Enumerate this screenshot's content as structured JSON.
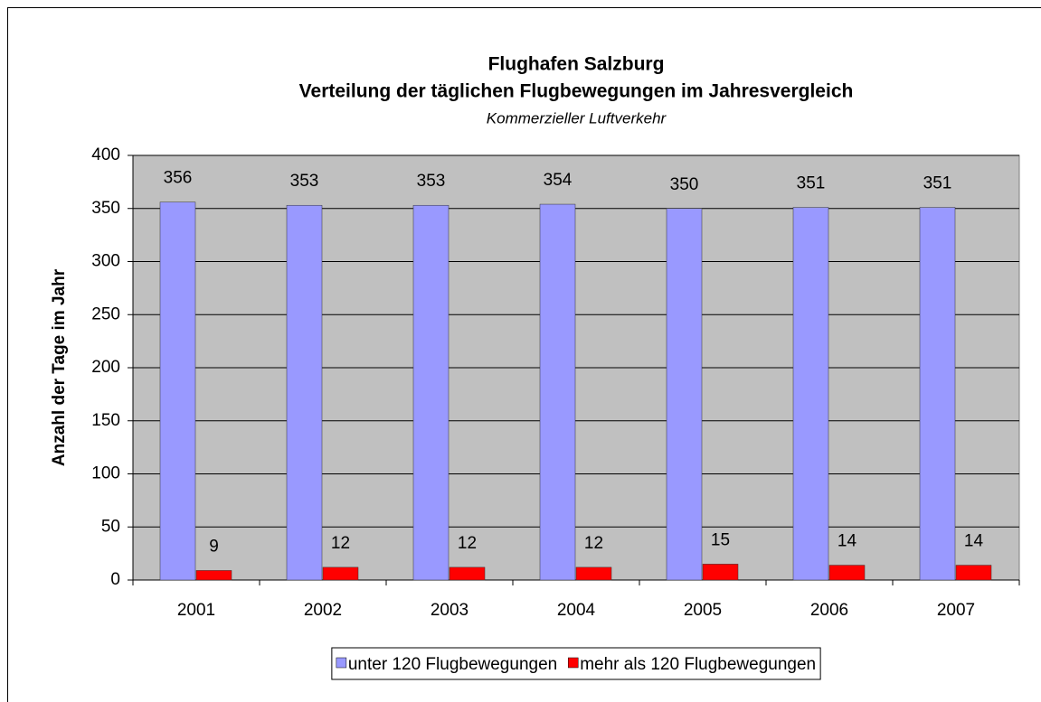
{
  "chart_data": {
    "type": "bar",
    "title": [
      "Flughafen Salzburg",
      "Verteilung der täglichen Flugbewegungen im Jahresvergleich"
    ],
    "subtitle": "Kommerzieller Luftverkehr",
    "y_label": "Anzahl der Tage im Jahr",
    "categories": [
      "2001",
      "2002",
      "2003",
      "2004",
      "2005",
      "2006",
      "2007"
    ],
    "series": [
      {
        "name": "unter 120 Flugbewegungen",
        "color": "#9999ff",
        "values": [
          356,
          353,
          353,
          354,
          350,
          351,
          351
        ]
      },
      {
        "name": "mehr als 120 Flugbewegungen",
        "color": "#ff0000",
        "values": [
          9,
          12,
          12,
          12,
          15,
          14,
          14
        ]
      }
    ],
    "ylim": [
      0,
      400
    ],
    "yticks": [
      0,
      50,
      100,
      150,
      200,
      250,
      300,
      350,
      400
    ],
    "grid": true
  }
}
